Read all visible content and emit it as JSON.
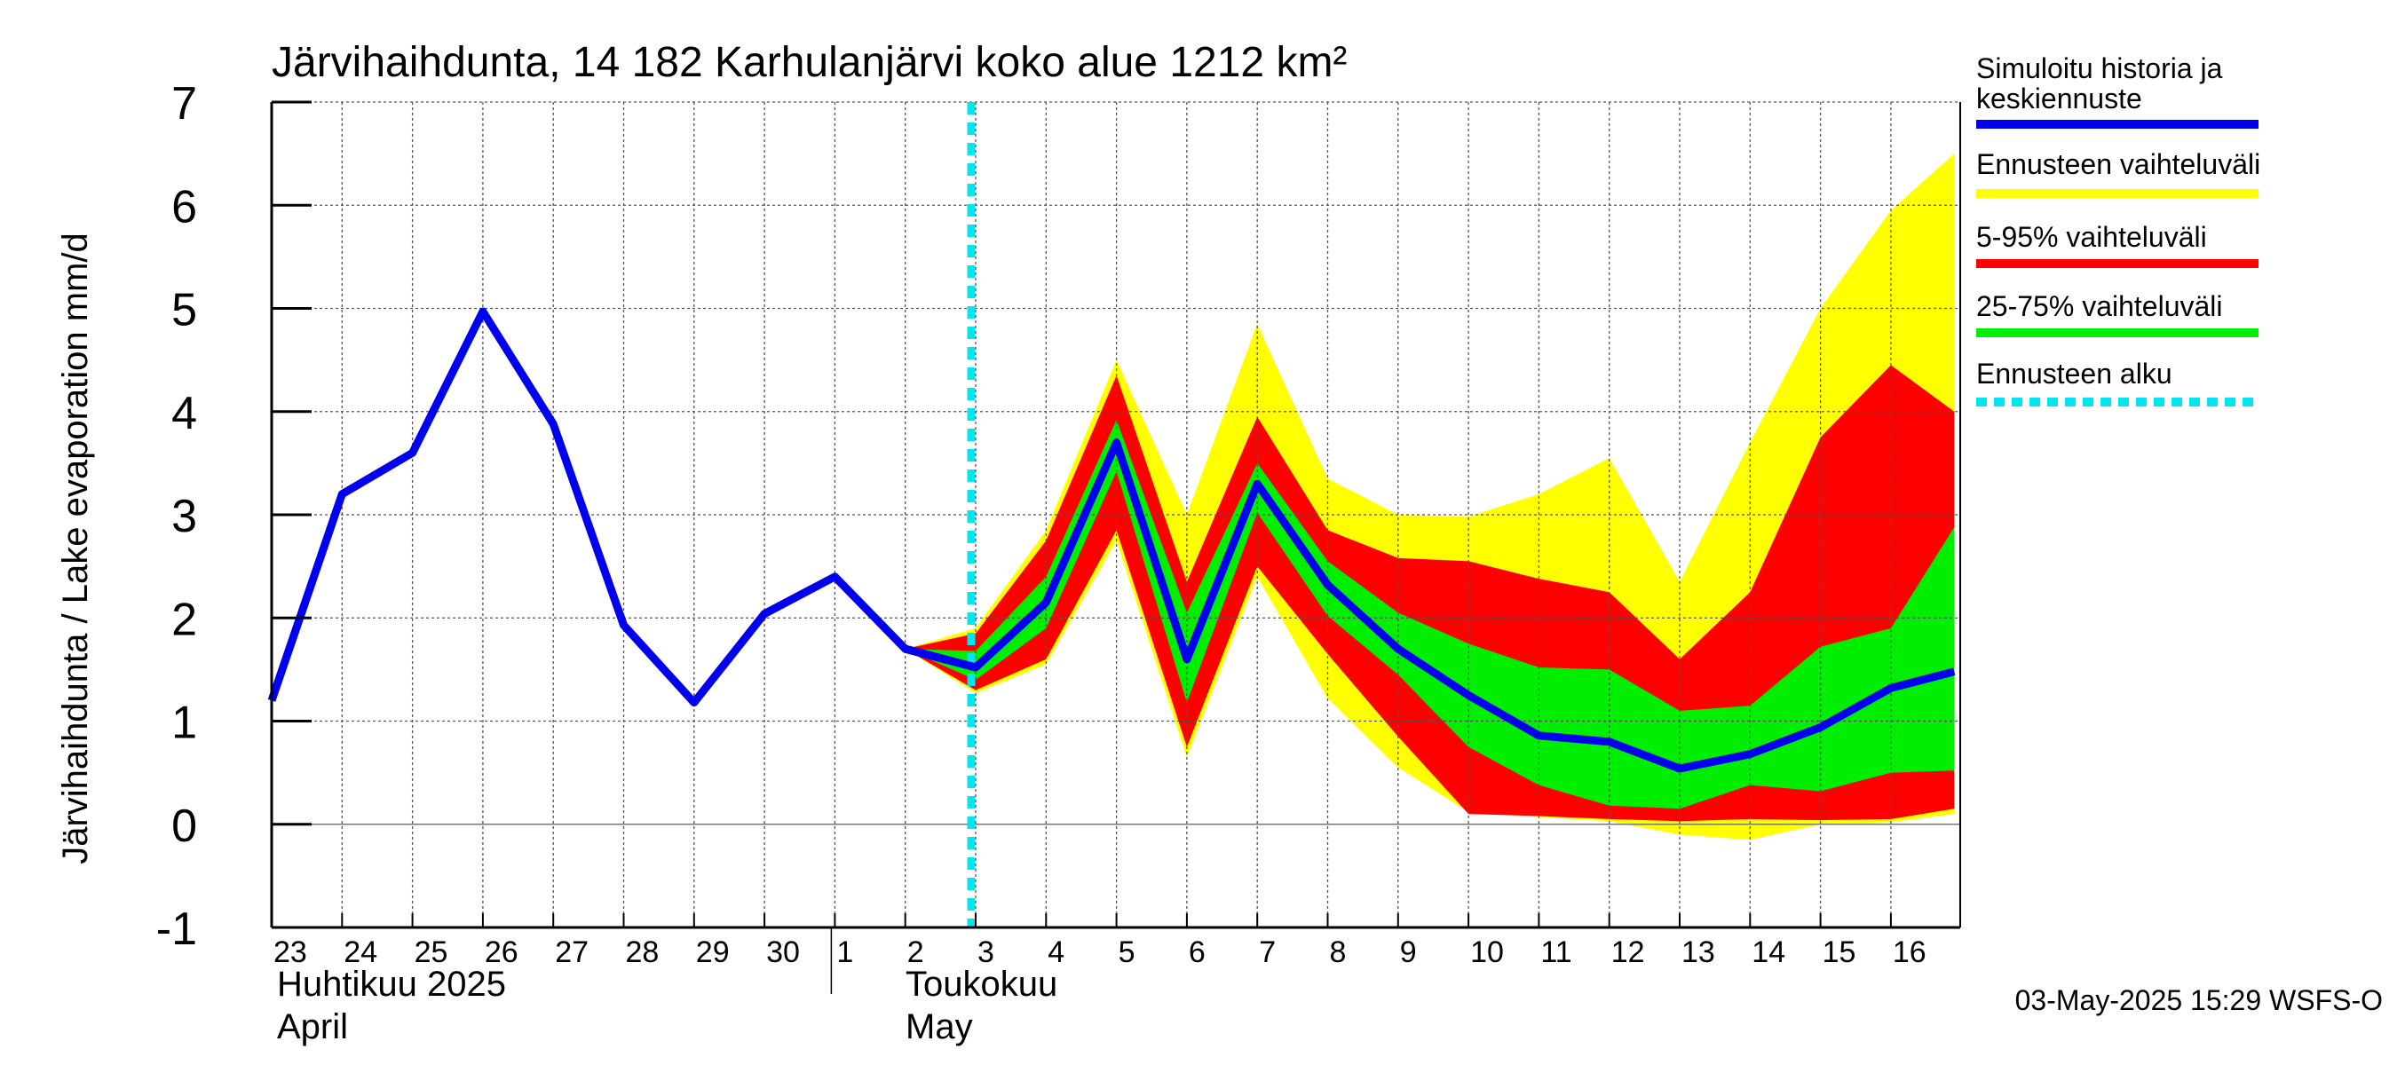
{
  "chart_data": {
    "type": "area",
    "title": "Järvihaihdunta, 14 182 Karhulanjärvi koko alue 1212 km²",
    "ylabel": "Järvihaihdunta / Lake evaporation   mm/d",
    "ylim": [
      -1,
      7
    ],
    "yticks": [
      "-1",
      "0",
      "1",
      "2",
      "3",
      "4",
      "5",
      "6",
      "7"
    ],
    "grid": true,
    "legend_position": "right",
    "x_ticks": [
      "23",
      "24",
      "25",
      "26",
      "27",
      "28",
      "29",
      "30",
      "1",
      "2",
      "3",
      "4",
      "5",
      "6",
      "7",
      "8",
      "9",
      "10",
      "11",
      "12",
      "13",
      "14",
      "15",
      "16"
    ],
    "month_labels": [
      {
        "fi": "Huhtikuu  2025",
        "en": "April"
      },
      {
        "fi": "Toukokuu",
        "en": "May"
      }
    ],
    "forecast_start": "3",
    "history": {
      "name": "Simuloitu historia ja keskiennuste",
      "x": [
        "23",
        "24",
        "25",
        "26",
        "27",
        "28",
        "29",
        "30",
        "1",
        "2",
        "3"
      ],
      "values": [
        1.2,
        3.2,
        3.6,
        4.97,
        3.88,
        1.93,
        1.18,
        2.04,
        2.4,
        1.7,
        1.52
      ]
    },
    "forecast_x": [
      "2",
      "3",
      "4",
      "5",
      "6",
      "7",
      "8",
      "9",
      "10",
      "11",
      "12",
      "13",
      "14",
      "15",
      "16",
      "16.9"
    ],
    "median": [
      1.7,
      1.52,
      2.15,
      3.7,
      1.6,
      3.3,
      2.32,
      1.7,
      1.25,
      0.86,
      0.8,
      0.54,
      0.68,
      0.94,
      1.32,
      1.48
    ],
    "bands": [
      {
        "name": "Ennusteen vaihteluväli",
        "color": "#ffff00",
        "upper": [
          1.7,
          1.9,
          2.85,
          4.5,
          3.0,
          4.85,
          3.35,
          3.0,
          2.98,
          3.2,
          3.55,
          2.35,
          3.7,
          5.0,
          5.95,
          6.5
        ],
        "lower": [
          1.7,
          1.27,
          1.55,
          2.75,
          0.65,
          2.4,
          1.22,
          0.55,
          0.12,
          0.07,
          0.03,
          -0.1,
          -0.15,
          0.0,
          0.02,
          0.1
        ]
      },
      {
        "name": "5-95% vaihteluväli",
        "color": "#ff0000",
        "upper": [
          1.7,
          1.85,
          2.75,
          4.35,
          2.35,
          3.95,
          2.85,
          2.58,
          2.55,
          2.38,
          2.25,
          1.6,
          2.25,
          3.75,
          4.45,
          4.0
        ],
        "lower": [
          1.7,
          1.3,
          1.6,
          2.85,
          0.75,
          2.5,
          1.65,
          0.85,
          0.1,
          0.08,
          0.05,
          0.03,
          0.05,
          0.04,
          0.05,
          0.15
        ]
      },
      {
        "name": "25-75% vaihteluväli",
        "color": "#00ee00",
        "upper": [
          1.7,
          1.68,
          2.4,
          3.92,
          2.05,
          3.5,
          2.55,
          2.05,
          1.75,
          1.52,
          1.5,
          1.1,
          1.15,
          1.72,
          1.9,
          2.88
        ],
        "lower": [
          1.7,
          1.4,
          1.9,
          3.42,
          1.18,
          3.02,
          2.02,
          1.45,
          0.75,
          0.38,
          0.18,
          0.15,
          0.38,
          0.32,
          0.5,
          0.52
        ]
      }
    ],
    "legend": [
      {
        "label": "Simuloitu historia ja keskiennuste",
        "color": "#0000ee",
        "style": "solid"
      },
      {
        "label": "Ennusteen vaihteluväli",
        "color": "#ffff00",
        "style": "solid"
      },
      {
        "label": "5-95% vaihteluväli",
        "color": "#ff0000",
        "style": "solid"
      },
      {
        "label": "25-75% vaihteluväli",
        "color": "#00ee00",
        "style": "solid"
      },
      {
        "label": "Ennusteen alku",
        "color": "#00e5ee",
        "style": "dashed"
      }
    ],
    "footer": "03-May-2025 15:29 WSFS-O"
  }
}
